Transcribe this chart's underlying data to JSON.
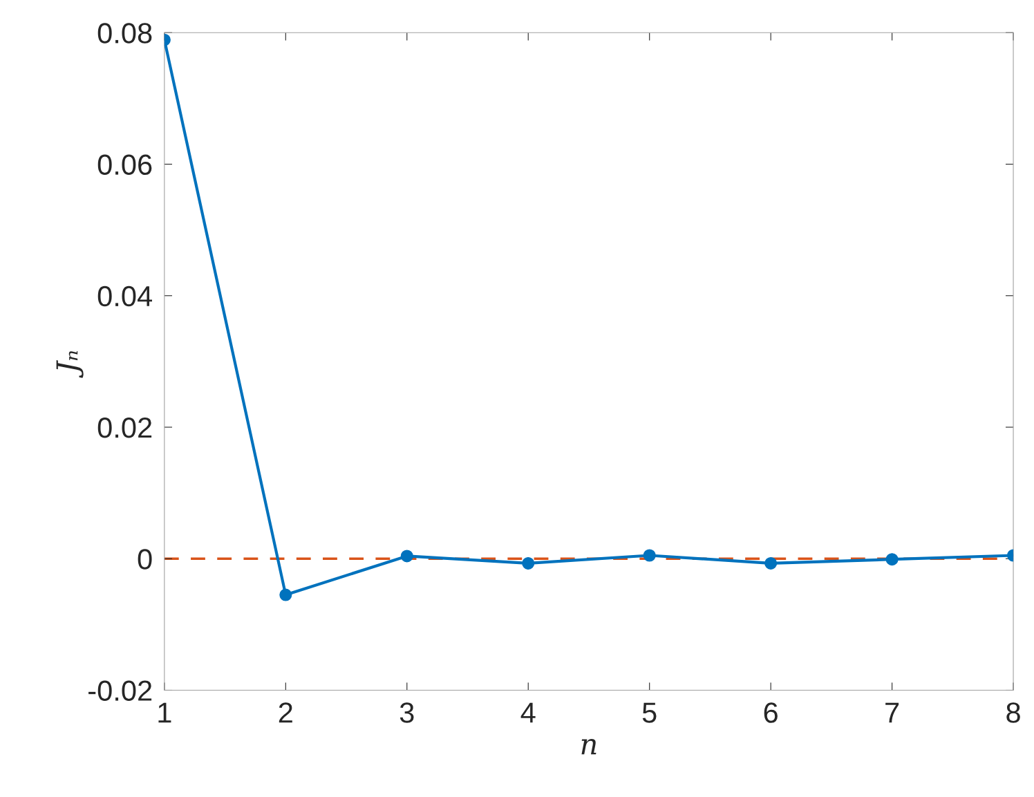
{
  "chart_data": {
    "type": "line",
    "xlabel": "n",
    "ylabel": "Jₙ",
    "x": [
      1,
      2,
      3,
      4,
      5,
      6,
      7,
      8
    ],
    "series": [
      {
        "color": "#0072bd",
        "values": [
          0.0789,
          -0.0055,
          0.0004,
          -0.0007,
          0.0005,
          -0.0007,
          -0.0001,
          0.0005
        ]
      }
    ],
    "marker": "circle",
    "line_style": "solid",
    "xlim": [
      1,
      8
    ],
    "xticks": [
      1,
      2,
      3,
      4,
      5,
      6,
      7,
      8
    ],
    "ylim": [
      -0.02,
      0.08
    ],
    "yticks": [
      {
        "value": -0.02,
        "label": "-0.02"
      },
      0,
      0.02,
      0.04,
      0.06,
      0.08
    ],
    "ref_lines": [
      {
        "axis": "y",
        "value": 0,
        "color": "#d95319",
        "line_style": "dashed"
      }
    ],
    "grid": false
  }
}
